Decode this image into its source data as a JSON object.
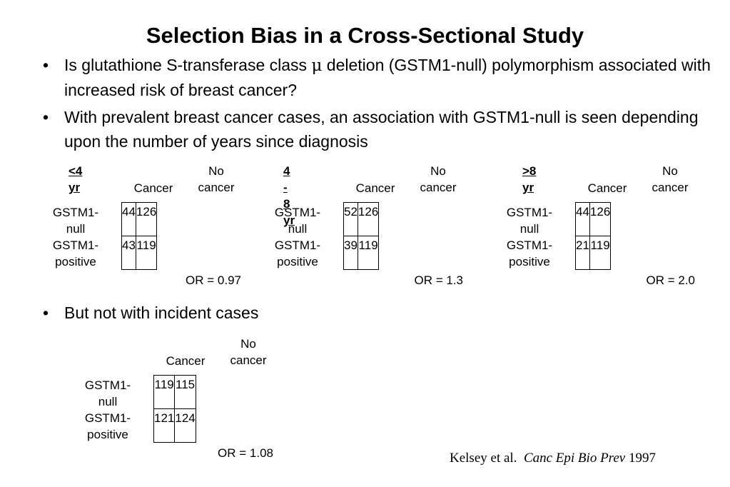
{
  "title": "Selection Bias in a Cross-Sectional Study",
  "bullets": [
    {
      "before": "Is glutathione S-transferase class ",
      "symbol": "μ",
      "after": " deletion (GSTM1-null) polymorphism associated with increased risk of breast cancer?"
    },
    {
      "text": "With prevalent breast cancer cases, an association with GSTM1-null is seen depending upon the number of years since diagnosis"
    },
    {
      "text": "But not with incident cases"
    }
  ],
  "bullet_char": "•",
  "labels": {
    "cancer": "Cancer",
    "no": "No",
    "cancer_lower": "cancer",
    "row1_a": "GSTM1-",
    "row1_b": "null",
    "row2_a": "GSTM1-",
    "row2_b": "positive"
  },
  "tables": [
    {
      "header": "<4 yr",
      "null_cancer": "44",
      "null_nocancer": "126",
      "pos_cancer": "43",
      "pos_nocancer": "119",
      "or": "OR = 0.97"
    },
    {
      "header": "4 - 8 yr",
      "null_cancer": "52",
      "null_nocancer": "126",
      "pos_cancer": "39",
      "pos_nocancer": "119",
      "or": "OR = 1.3"
    },
    {
      "header": ">8 yr",
      "null_cancer": "44",
      "null_nocancer": "126",
      "pos_cancer": "21",
      "pos_nocancer": "119",
      "or": "OR = 2.0"
    },
    {
      "header": "",
      "null_cancer": "119",
      "null_nocancer": "115",
      "pos_cancer": "121",
      "pos_nocancer": "124",
      "or": "OR = 1.08"
    }
  ],
  "citation": {
    "authors": "Kelsey et al.",
    "journal": "Canc Epi Bio Prev",
    "year": "1997"
  }
}
